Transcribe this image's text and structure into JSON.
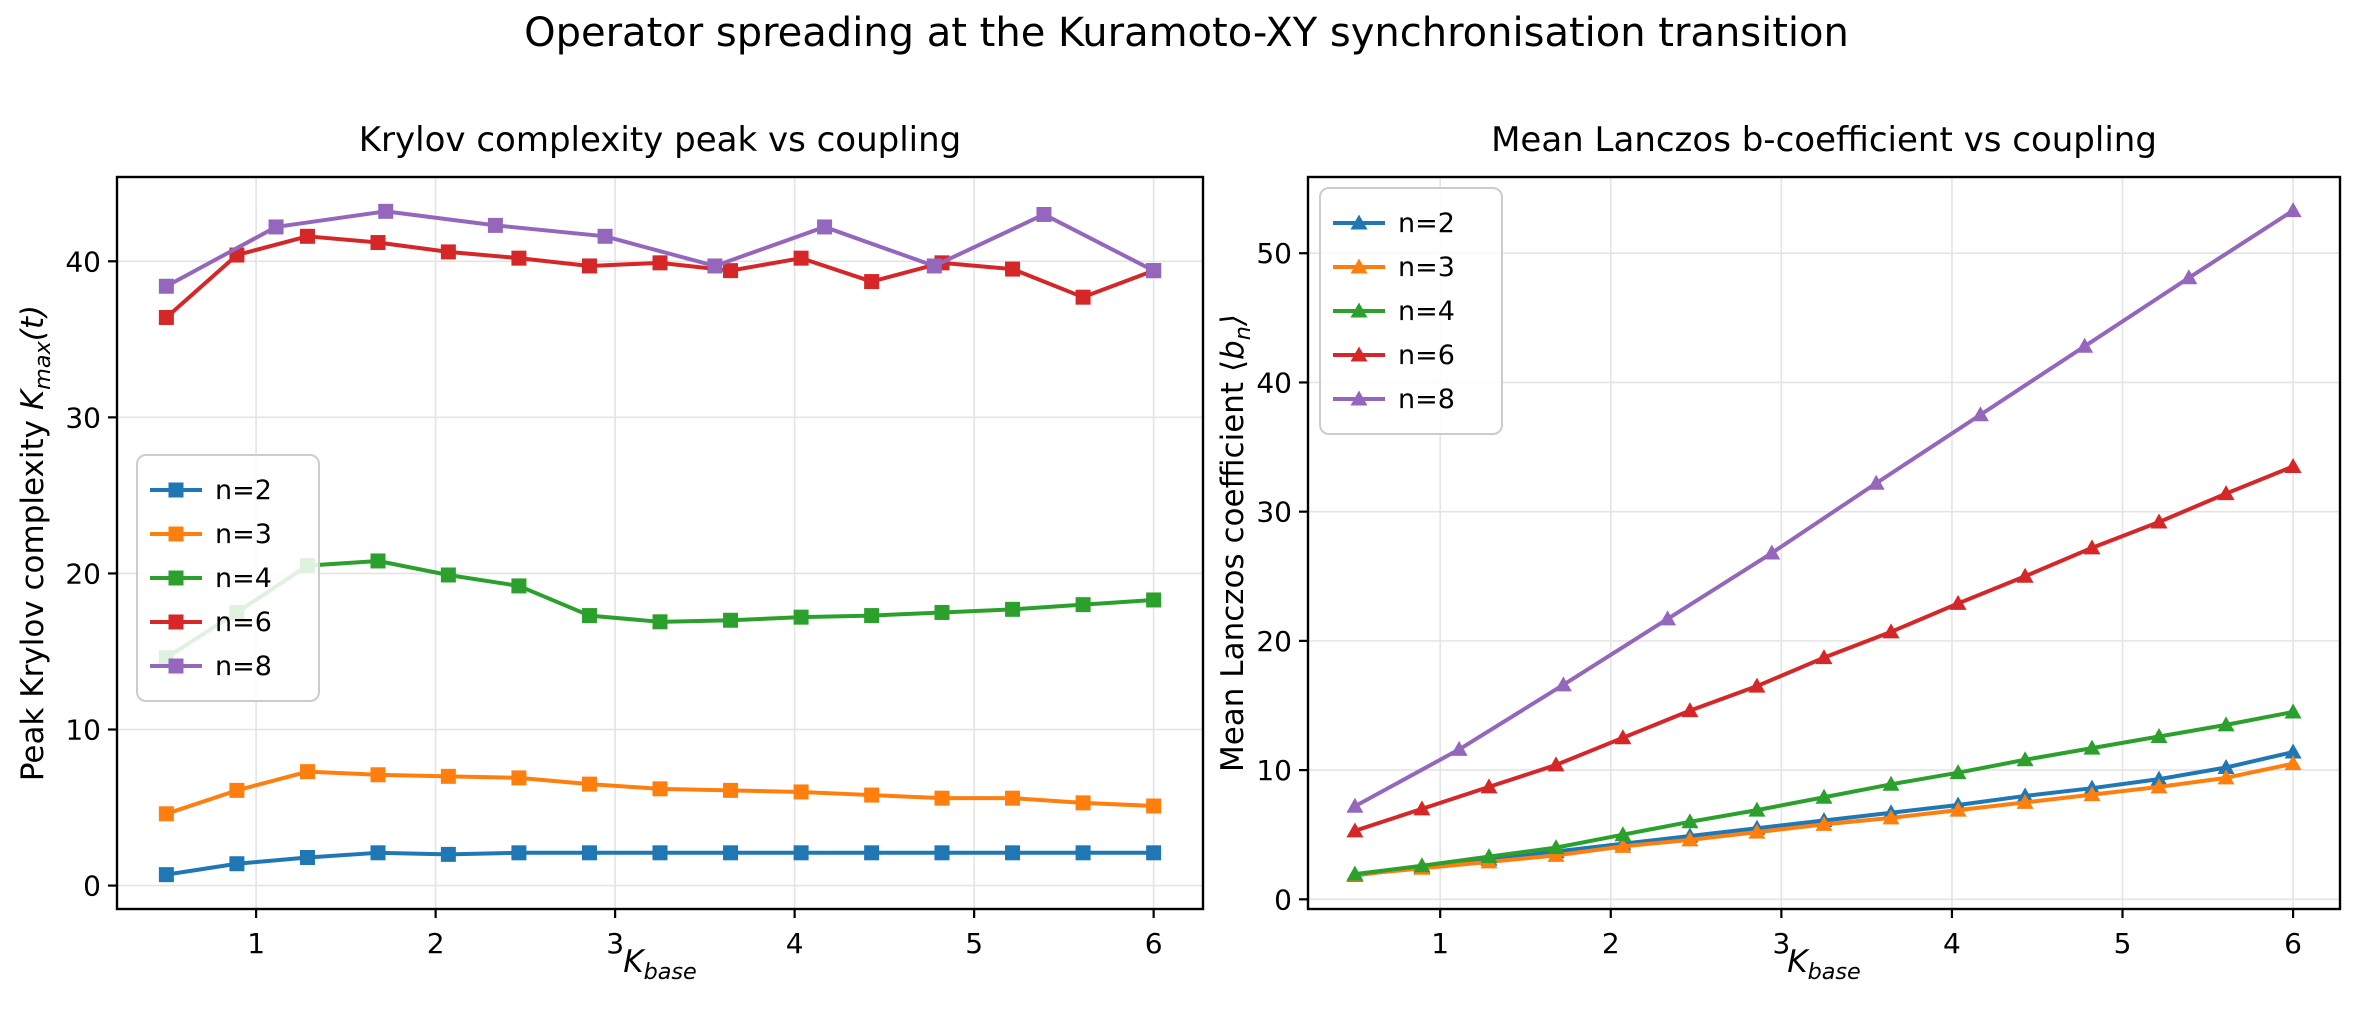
{
  "figure": {
    "title": "Operator spreading at the Kuramoto-XY synchronisation transition"
  },
  "chart_data": [
    {
      "type": "line",
      "title": "Krylov complexity peak vs coupling",
      "xlabel": {
        "base": "K",
        "sub": "base"
      },
      "ylabel": {
        "prefix": "Peak Krylov complexity ",
        "var": "K",
        "sub": "max",
        "suffix": "(t)"
      },
      "marker": "square",
      "grid": true,
      "legend_position": "center-left",
      "xlim": [
        0.225,
        6.275
      ],
      "ylim": [
        -1.5,
        45.4
      ],
      "x_ticks": [
        1,
        2,
        3,
        4,
        5,
        6
      ],
      "y_ticks": [
        0,
        10,
        20,
        30,
        40
      ],
      "series": [
        {
          "name": "n=2",
          "color": "#1f77b4",
          "x": [
            0.5,
            0.893,
            1.286,
            1.679,
            2.071,
            2.464,
            2.857,
            3.25,
            3.643,
            4.036,
            4.429,
            4.821,
            5.214,
            5.607,
            6.0
          ],
          "y": [
            0.7,
            1.4,
            1.8,
            2.1,
            2.0,
            2.1,
            2.1,
            2.1,
            2.1,
            2.1,
            2.1,
            2.1,
            2.1,
            2.1,
            2.1
          ]
        },
        {
          "name": "n=3",
          "color": "#ff7f0e",
          "x": [
            0.5,
            0.893,
            1.286,
            1.679,
            2.071,
            2.464,
            2.857,
            3.25,
            3.643,
            4.036,
            4.429,
            4.821,
            5.214,
            5.607,
            6.0
          ],
          "y": [
            4.6,
            6.1,
            7.3,
            7.1,
            7.0,
            6.9,
            6.5,
            6.2,
            6.1,
            6.0,
            5.8,
            5.6,
            5.6,
            5.3,
            5.1
          ]
        },
        {
          "name": "n=4",
          "color": "#2ca02c",
          "x": [
            0.5,
            0.893,
            1.286,
            1.679,
            2.071,
            2.464,
            2.857,
            3.25,
            3.643,
            4.036,
            4.429,
            4.821,
            5.214,
            5.607,
            6.0
          ],
          "y": [
            14.6,
            17.5,
            20.5,
            20.8,
            19.9,
            19.2,
            17.3,
            16.9,
            17.0,
            17.2,
            17.3,
            17.5,
            17.7,
            18.0,
            18.3
          ]
        },
        {
          "name": "n=6",
          "color": "#d62728",
          "x": [
            0.5,
            0.893,
            1.286,
            1.679,
            2.071,
            2.464,
            2.857,
            3.25,
            3.643,
            4.036,
            4.429,
            4.821,
            5.214,
            5.607,
            6.0
          ],
          "y": [
            36.4,
            40.4,
            41.6,
            41.2,
            40.6,
            40.2,
            39.7,
            39.9,
            39.4,
            40.2,
            38.7,
            39.9,
            39.5,
            37.7,
            39.4
          ]
        },
        {
          "name": "n=8",
          "color": "#9467bd",
          "x": [
            0.5,
            1.111,
            1.722,
            2.333,
            2.944,
            3.556,
            4.167,
            4.778,
            5.389,
            6.0
          ],
          "y": [
            38.4,
            42.2,
            43.2,
            42.3,
            41.6,
            39.7,
            42.2,
            39.7,
            43.0,
            39.4
          ]
        }
      ]
    },
    {
      "type": "line",
      "title": "Mean Lanczos b-coefficient vs coupling",
      "xlabel": {
        "base": "K",
        "sub": "base"
      },
      "ylabel": {
        "prefix": "Mean Lanczos coefficient ⟨",
        "var": "b",
        "sub": "n",
        "suffix": "⟩"
      },
      "marker": "triangle",
      "grid": true,
      "legend_position": "upper-left",
      "xlim": [
        0.225,
        6.275
      ],
      "ylim": [
        -0.75,
        55.9
      ],
      "x_ticks": [
        1,
        2,
        3,
        4,
        5,
        6
      ],
      "y_ticks": [
        0,
        10,
        20,
        30,
        40,
        50
      ],
      "series": [
        {
          "name": "n=2",
          "color": "#1f77b4",
          "x": [
            0.5,
            0.893,
            1.286,
            1.679,
            2.071,
            2.464,
            2.857,
            3.25,
            3.643,
            4.036,
            4.429,
            4.821,
            5.214,
            5.607,
            6.0
          ],
          "y": [
            1.85,
            2.5,
            3.1,
            3.7,
            4.3,
            4.9,
            5.5,
            6.1,
            6.7,
            7.3,
            8.0,
            8.6,
            9.3,
            10.2,
            11.4
          ]
        },
        {
          "name": "n=3",
          "color": "#ff7f0e",
          "x": [
            0.5,
            0.893,
            1.286,
            1.679,
            2.071,
            2.464,
            2.857,
            3.25,
            3.643,
            4.036,
            4.429,
            4.821,
            5.214,
            5.607,
            6.0
          ],
          "y": [
            1.9,
            2.4,
            2.9,
            3.4,
            4.1,
            4.6,
            5.2,
            5.8,
            6.3,
            6.9,
            7.5,
            8.1,
            8.7,
            9.4,
            10.5
          ]
        },
        {
          "name": "n=4",
          "color": "#2ca02c",
          "x": [
            0.5,
            0.893,
            1.286,
            1.679,
            2.071,
            2.464,
            2.857,
            3.25,
            3.643,
            4.036,
            4.429,
            4.821,
            5.214,
            5.607,
            6.0
          ],
          "y": [
            1.95,
            2.6,
            3.3,
            4.0,
            5.0,
            6.0,
            6.9,
            7.9,
            8.9,
            9.8,
            10.8,
            11.7,
            12.6,
            13.5,
            14.5
          ]
        },
        {
          "name": "n=6",
          "color": "#d62728",
          "x": [
            0.5,
            0.893,
            1.286,
            1.679,
            2.071,
            2.464,
            2.857,
            3.25,
            3.643,
            4.036,
            4.429,
            4.821,
            5.214,
            5.607,
            6.0
          ],
          "y": [
            5.3,
            7.0,
            8.7,
            10.4,
            12.5,
            14.6,
            16.5,
            18.7,
            20.7,
            22.9,
            25.0,
            27.2,
            29.2,
            31.4,
            33.5
          ]
        },
        {
          "name": "n=8",
          "color": "#9467bd",
          "x": [
            0.5,
            1.111,
            1.722,
            2.333,
            2.944,
            3.556,
            4.167,
            4.778,
            5.389,
            6.0
          ],
          "y": [
            7.2,
            11.6,
            16.6,
            21.7,
            26.8,
            32.2,
            37.5,
            42.8,
            48.1,
            53.3
          ]
        }
      ]
    }
  ]
}
